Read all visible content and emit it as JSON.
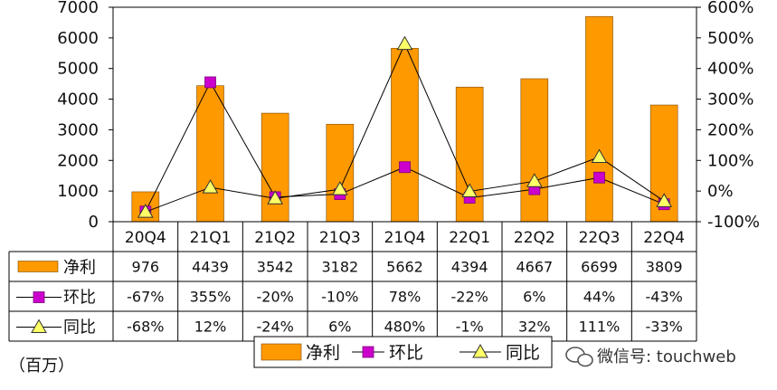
{
  "chart_data": {
    "type": "bar",
    "categories": [
      "20Q4",
      "21Q1",
      "21Q2",
      "21Q3",
      "21Q4",
      "22Q1",
      "22Q2",
      "22Q3",
      "22Q4"
    ],
    "series": [
      {
        "name": "净利",
        "kind": "bar",
        "axis": "left",
        "color": "#FF9900",
        "values": [
          976,
          4439,
          3542,
          3182,
          5662,
          4394,
          4667,
          6699,
          3809
        ],
        "labels": [
          "976",
          "4439",
          "3542",
          "3182",
          "5662",
          "4394",
          "4667",
          "6699",
          "3809"
        ]
      },
      {
        "name": "环比",
        "kind": "line",
        "axis": "right",
        "color": "#CC00CC",
        "marker": "square",
        "values": [
          -67,
          355,
          -20,
          -10,
          78,
          -22,
          6,
          44,
          -43
        ],
        "labels": [
          "-67%",
          "355%",
          "-20%",
          "-10%",
          "78%",
          "-22%",
          "6%",
          "44%",
          "-43%"
        ]
      },
      {
        "name": "同比",
        "kind": "line",
        "axis": "right",
        "color": "#FFFF66",
        "marker": "triangle",
        "values": [
          -68,
          12,
          -24,
          6,
          480,
          -1,
          32,
          111,
          -33
        ],
        "labels": [
          "-68%",
          "12%",
          "-24%",
          "6%",
          "480%",
          "-1%",
          "32%",
          "111%",
          "-33%"
        ]
      }
    ],
    "ylim": [
      0,
      7000
    ],
    "yticks": [
      "0",
      "1000",
      "2000",
      "3000",
      "4000",
      "5000",
      "6000",
      "7000"
    ],
    "y2lim": [
      -100,
      600
    ],
    "y2ticks": [
      "-100%",
      "0%",
      "100%",
      "200%",
      "300%",
      "400%",
      "500%",
      "600%"
    ],
    "grid": false,
    "legend_position": "bottom",
    "data_table": true
  },
  "unit_label": "（百万）",
  "watermark": "微信号: touchweb",
  "colors": {
    "bar": "#FF9900",
    "bar_edge": "#7a4a00",
    "qoq": "#CC00CC",
    "yoy": "#FFFF66",
    "axis": "#000000"
  }
}
